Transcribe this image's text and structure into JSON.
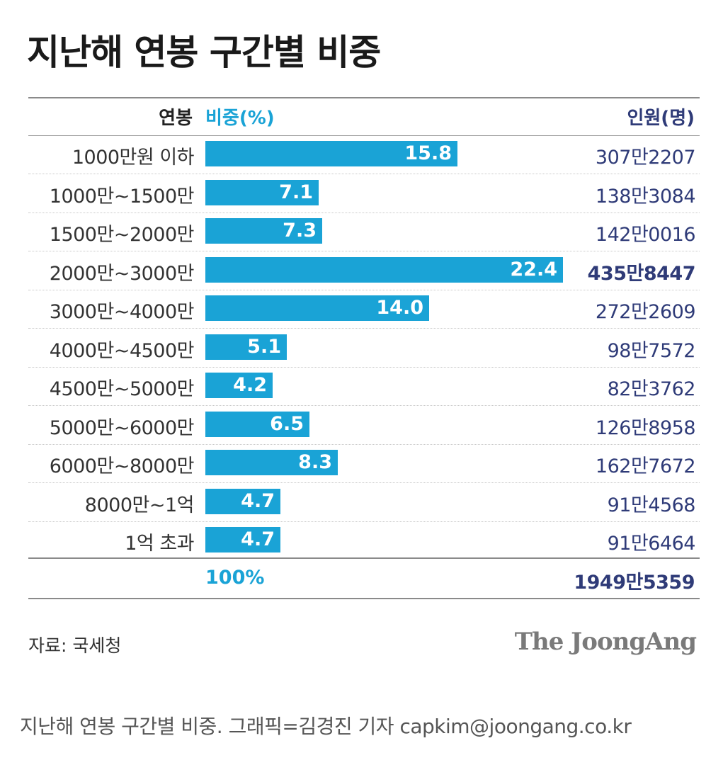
{
  "title": "지난해 연봉 구간별 비중",
  "header": {
    "category": "연봉",
    "value": "비중(%)",
    "count": "인원(명)"
  },
  "colors": {
    "bar": "#1aa3d6",
    "count_text": "#2f3b78",
    "value_header": "#1aa3d6"
  },
  "chart_data": {
    "type": "bar",
    "orientation": "horizontal",
    "title": "지난해 연봉 구간별 비중",
    "categories": [
      "1000만원 이하",
      "1000만~1500만",
      "1500만~2000만",
      "2000만~3000만",
      "3000만~4000만",
      "4000만~4500만",
      "4500만~5000만",
      "5000만~6000만",
      "6000만~8000만",
      "8000만~1억",
      "1억 초과"
    ],
    "series": [
      {
        "name": "비중(%)",
        "values": [
          15.8,
          7.1,
          7.3,
          22.4,
          14.0,
          5.1,
          4.2,
          6.5,
          8.3,
          4.7,
          4.7
        ],
        "labels": [
          "15.8",
          "7.1",
          "7.3",
          "22.4",
          "14.0",
          "5.1",
          "4.2",
          "6.5",
          "8.3",
          "4.7",
          "4.7"
        ]
      }
    ],
    "counts": [
      "307만2207",
      "138만3084",
      "142만0016",
      "435만8447",
      "272만2609",
      "98만7572",
      "82만3762",
      "126만8958",
      "162만7672",
      "91만4568",
      "91만6464"
    ],
    "highlight_index": 3,
    "total": {
      "percent": "100%",
      "count": "1949만5359"
    },
    "xlim": [
      0,
      22.4
    ],
    "grid": false
  },
  "source": "자료: 국세청",
  "brand": "The JoongAng",
  "caption": "지난해 연봉 구간별 비중. 그래픽=김경진 기자 capkim@joongang.co.kr"
}
